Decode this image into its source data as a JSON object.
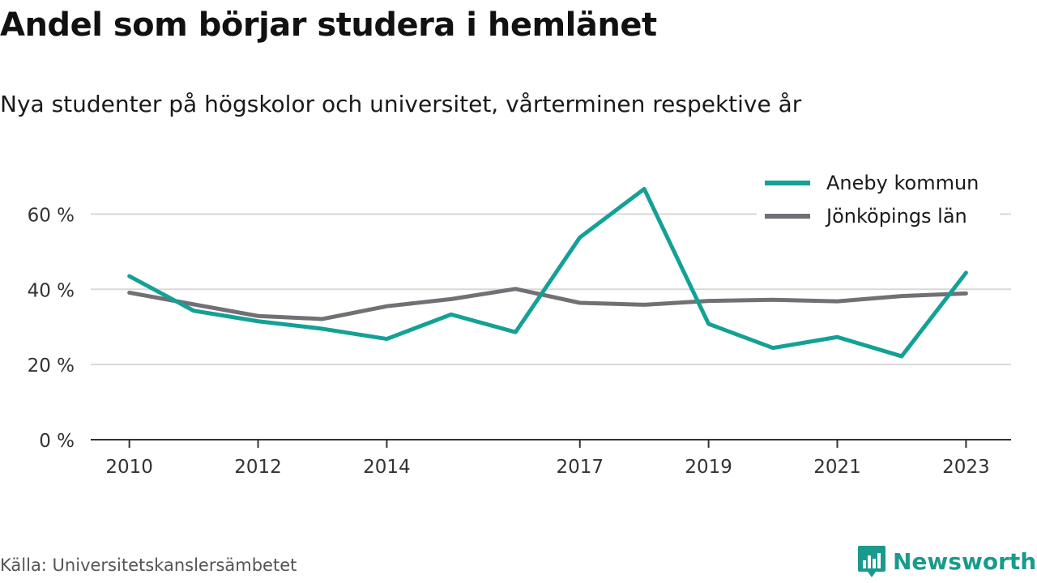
{
  "header": {
    "title": "Andel som börjar studera i hemlänet",
    "subtitle": "Nya studenter på högskolor och universitet, vårterminen respektive år"
  },
  "footer": {
    "source": "Källa: Universitetskanslersämbetet",
    "brand": "Newsworthy",
    "brand_icon": "bar-chart-speech-bubble-icon"
  },
  "colors": {
    "accent": "#14a195",
    "secondary": "#707075",
    "grid": "#d9d9d9",
    "brand": "#1a9a8c"
  },
  "chart_data": {
    "type": "line",
    "x": [
      2010,
      2011,
      2012,
      2013,
      2014,
      2015,
      2016,
      2017,
      2018,
      2019,
      2020,
      2021,
      2022,
      2023
    ],
    "x_ticks": [
      2010,
      2012,
      2014,
      2017,
      2019,
      2021,
      2023
    ],
    "x_tick_labels": [
      "2010",
      "2012",
      "2014",
      "2017",
      "2019",
      "2021",
      "2023"
    ],
    "y_ticks": [
      0,
      20,
      40,
      60
    ],
    "y_tick_labels": [
      "0 %",
      "20 %",
      "40 %",
      "60 %"
    ],
    "ylim": [
      0,
      70
    ],
    "grid": true,
    "legend_position": "top-right",
    "series": [
      {
        "name": "Aneby kommun",
        "color": "#14a195",
        "values": [
          43.5,
          34.3,
          31.5,
          29.5,
          26.8,
          33.3,
          28.6,
          53.8,
          66.7,
          30.8,
          24.4,
          27.3,
          22.2,
          44.4
        ]
      },
      {
        "name": "Jönköpings län",
        "color": "#707075",
        "values": [
          39.1,
          36.0,
          32.9,
          32.1,
          35.5,
          37.4,
          40.1,
          36.4,
          35.9,
          36.9,
          37.2,
          36.8,
          38.2,
          38.9
        ]
      }
    ]
  }
}
